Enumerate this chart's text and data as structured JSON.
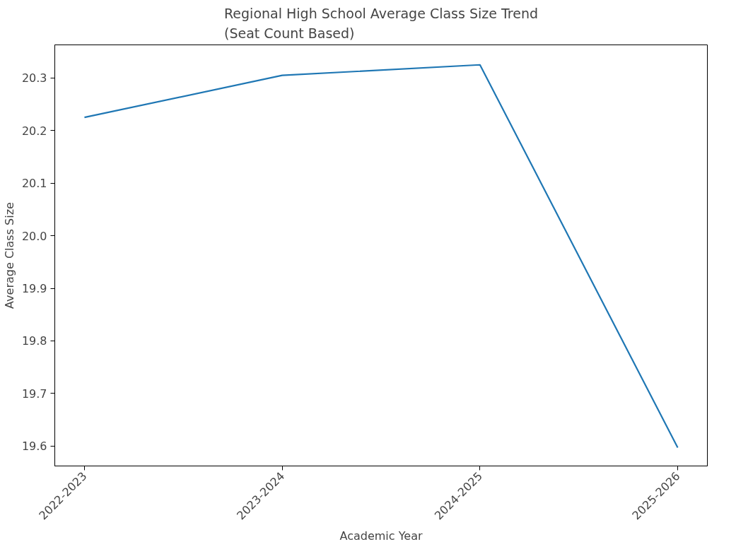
{
  "chart_data": {
    "type": "line",
    "title": "Regional High School Average Class Size Trend\n(Seat Count Based)",
    "xlabel": "Academic Year",
    "ylabel": "Average Class Size",
    "categories": [
      "2022-2023",
      "2023-2024",
      "2024-2025",
      "2025-2026"
    ],
    "series": [
      {
        "color": "#1f77b4",
        "values": [
          20.225,
          20.305,
          20.325,
          19.597
        ]
      }
    ],
    "ylim": [
      19.562,
      20.363
    ],
    "yticks": [
      19.6,
      19.7,
      19.8,
      19.9,
      {
        "value": 20,
        "label": "20.0"
      },
      20.1,
      20.2,
      20.3
    ],
    "grid": false,
    "line_style": "solid"
  }
}
